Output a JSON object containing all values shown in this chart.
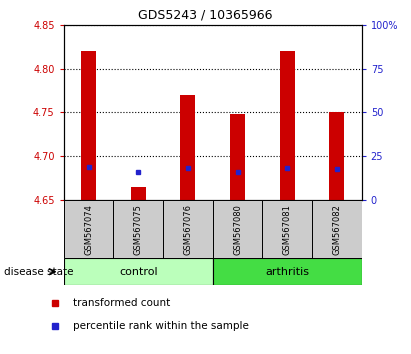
{
  "title": "GDS5243 / 10365966",
  "samples": [
    "GSM567074",
    "GSM567075",
    "GSM567076",
    "GSM567080",
    "GSM567081",
    "GSM567082"
  ],
  "ylim_left": [
    4.65,
    4.85
  ],
  "ylim_right": [
    0,
    100
  ],
  "yticks_left": [
    4.65,
    4.7,
    4.75,
    4.8,
    4.85
  ],
  "yticks_right": [
    0,
    25,
    50,
    75,
    100
  ],
  "red_bar_top": [
    4.82,
    4.665,
    4.77,
    4.748,
    4.82,
    4.751
  ],
  "red_bar_bottom": 4.65,
  "blue_dot_y": [
    4.688,
    4.682,
    4.687,
    4.682,
    4.686,
    4.685
  ],
  "bar_width": 0.3,
  "bar_color": "#cc0000",
  "blue_color": "#2222cc",
  "control_color": "#bbffbb",
  "arthritis_color": "#44dd44",
  "label_bg_color": "#cccccc",
  "axis_color_left": "#cc0000",
  "axis_color_right": "#2222cc",
  "legend_labels": [
    "transformed count",
    "percentile rank within the sample"
  ],
  "disease_state_label": "disease state"
}
